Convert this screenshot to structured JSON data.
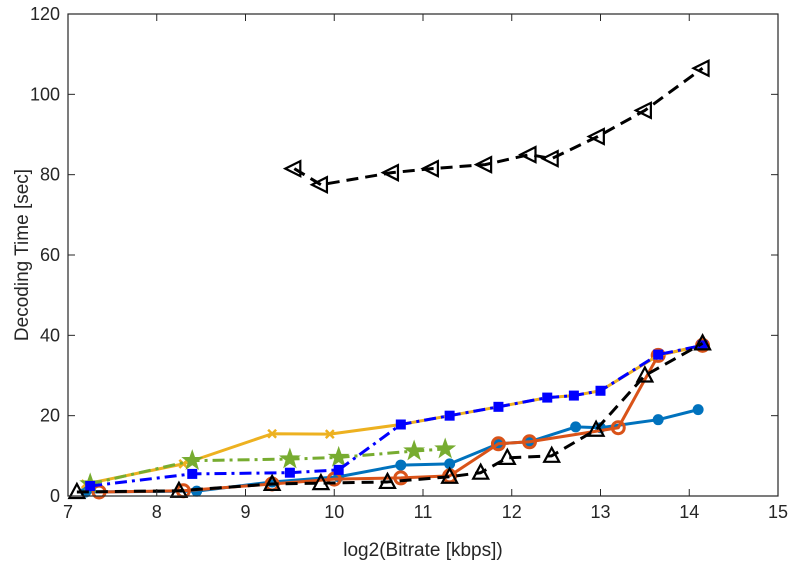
{
  "chart_data": {
    "type": "line",
    "title": "",
    "xlabel": "log2(Bitrate [kbps])",
    "ylabel": "Decoding Time [sec]",
    "xlim": [
      7,
      15
    ],
    "ylim": [
      0,
      120
    ],
    "xticks": [
      7,
      8,
      9,
      10,
      11,
      12,
      13,
      14,
      15
    ],
    "yticks": [
      0,
      20,
      40,
      60,
      80,
      100,
      120
    ],
    "grid": false,
    "legend": "none",
    "series": [
      {
        "name": "series-1-blue-dot",
        "color": "#0072BD",
        "dash": "solid",
        "marker": "dot",
        "x": [
          7.2,
          8.45,
          9.3,
          10.05,
          10.75,
          11.3,
          11.85,
          12.2,
          12.72,
          13.0,
          13.65,
          14.1
        ],
        "y": [
          1.0,
          1.2,
          3.5,
          4.8,
          7.7,
          8.0,
          13.0,
          13.5,
          17.2,
          17.0,
          19.0,
          21.5
        ]
      },
      {
        "name": "series-2-orange-circle",
        "color": "#D95319",
        "dash": "solid",
        "marker": "circle",
        "x": [
          7.35,
          8.3,
          9.3,
          10.0,
          10.75,
          11.3,
          11.85,
          12.2,
          13.2,
          13.65,
          14.15
        ],
        "y": [
          1.0,
          1.3,
          3.0,
          4.2,
          4.5,
          5.0,
          13.0,
          13.5,
          17.0,
          35.0,
          37.5
        ]
      },
      {
        "name": "series-3-yellow-x",
        "color": "#EDB120",
        "dash": "solid",
        "marker": "x",
        "x": [
          7.2,
          8.3,
          9.3,
          9.95,
          10.75,
          11.3,
          11.85,
          12.4,
          12.7,
          13.0,
          13.65,
          14.15
        ],
        "y": [
          3.0,
          8.0,
          15.5,
          15.4,
          17.8,
          20.0,
          22.2,
          24.5,
          25.0,
          26.2,
          35.0,
          37.5
        ]
      },
      {
        "name": "series-4-green-star",
        "color": "#77AC30",
        "dash": "dashdot",
        "marker": "star",
        "x": [
          7.25,
          8.4,
          9.5,
          10.05,
          10.9,
          11.25
        ],
        "y": [
          3.0,
          8.8,
          9.2,
          9.6,
          11.2,
          11.7
        ]
      },
      {
        "name": "series-5-blue-square",
        "color": "#0000FF",
        "dash": "dashdot",
        "marker": "square",
        "x": [
          7.25,
          8.4,
          9.5,
          10.05,
          10.75,
          11.3,
          11.85,
          12.4,
          12.7,
          13.0,
          13.65,
          14.15
        ],
        "y": [
          2.5,
          5.5,
          5.8,
          6.5,
          17.8,
          20.0,
          22.2,
          24.5,
          25.0,
          26.2,
          35.2,
          37.5
        ]
      },
      {
        "name": "series-6-black-triangle-up",
        "color": "#000000",
        "dash": "dashed",
        "marker": "triangle-up",
        "x": [
          7.1,
          8.25,
          9.3,
          9.85,
          10.6,
          11.3,
          11.65,
          11.95,
          12.45,
          12.95,
          13.5,
          14.15
        ],
        "y": [
          1.0,
          1.3,
          3.0,
          3.2,
          3.5,
          4.8,
          5.8,
          9.5,
          10.0,
          16.5,
          30.0,
          38.0
        ]
      },
      {
        "name": "series-7-black-triangle-left",
        "color": "#000000",
        "dash": "dashed",
        "marker": "triangle-left",
        "x": [
          9.55,
          9.85,
          10.65,
          11.1,
          11.7,
          12.2,
          12.45,
          12.97,
          13.5,
          14.15
        ],
        "y": [
          81.5,
          77.5,
          80.5,
          81.5,
          82.5,
          85.0,
          84.0,
          89.5,
          96.0,
          106.5
        ]
      }
    ]
  }
}
